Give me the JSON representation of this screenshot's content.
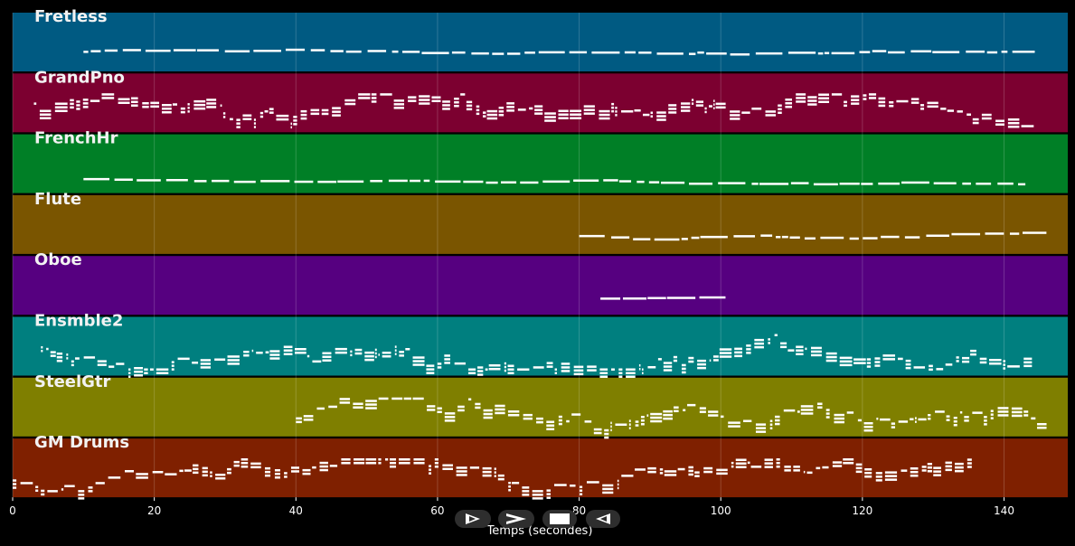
{
  "chart_data": {
    "type": "piano-roll",
    "title": "",
    "xlabel": "Temps (secondes)",
    "ylabel": "",
    "xlim": [
      0,
      149
    ],
    "xticks": [
      0,
      20,
      40,
      60,
      80,
      100,
      120,
      140
    ],
    "grid": true,
    "tracks": [
      {
        "name": "Fretless",
        "color": "#005A82",
        "start": 10,
        "end": 142,
        "pitch_range": [
          0.1,
          0.6
        ],
        "density": "sparse-line"
      },
      {
        "name": "GrandPno",
        "color": "#7C0030",
        "start": 3,
        "end": 144,
        "pitch_range": [
          0.0,
          0.9
        ],
        "density": "dense"
      },
      {
        "name": "FrenchHr",
        "color": "#007F26",
        "start": 10,
        "end": 142,
        "pitch_range": [
          0.0,
          0.4
        ],
        "density": "sparse-line"
      },
      {
        "name": "Flute",
        "color": "#7A5500",
        "start": 80,
        "end": 144,
        "pitch_range": [
          0.0,
          0.7
        ],
        "density": "sparse-line"
      },
      {
        "name": "Oboe",
        "color": "#560080",
        "start": 83,
        "end": 97,
        "pitch_range": [
          0.2,
          0.4
        ],
        "density": "sparse-line"
      },
      {
        "name": "Ensmble2",
        "color": "#007F7F",
        "start": 4,
        "end": 144,
        "pitch_range": [
          0.0,
          1.0
        ],
        "density": "dense"
      },
      {
        "name": "SteelGtr",
        "color": "#7F7F00",
        "start": 40,
        "end": 146,
        "pitch_range": [
          0.0,
          0.9
        ],
        "density": "dense"
      },
      {
        "name": "GM Drums",
        "color": "#7F2000",
        "start": 0,
        "end": 136,
        "pitch_range": [
          0.0,
          0.9
        ],
        "density": "dense"
      }
    ]
  },
  "controls": {
    "play_icon": "play-outline-icon",
    "forward_icon": "chevron-right-icon",
    "stop_icon": "stop-icon",
    "rewind_icon": "rewind-icon"
  }
}
